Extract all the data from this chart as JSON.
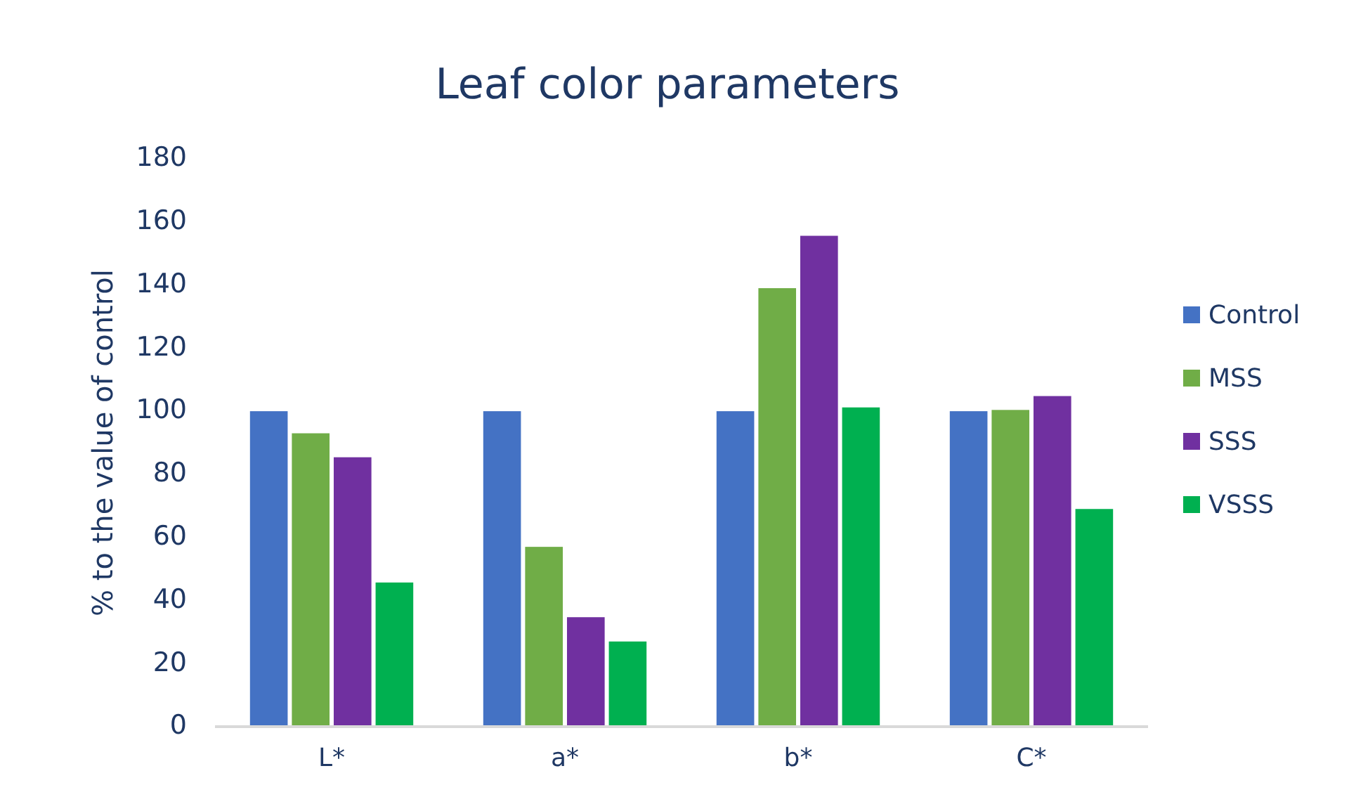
{
  "chart_data": {
    "type": "bar",
    "title": "Leaf color parameters",
    "ylabel": "% to the value of control",
    "categories": [
      "L*",
      "a*",
      "b*",
      "C*"
    ],
    "series": [
      {
        "name": "Control",
        "color": "#4472c4",
        "values": [
          100,
          100,
          100,
          100
        ]
      },
      {
        "name": "MSS",
        "color": "#70ad47",
        "values": [
          93,
          57,
          139,
          100.4
        ]
      },
      {
        "name": "SSS",
        "color": "#7030a0",
        "values": [
          85.4,
          34.7,
          155.6,
          104.8
        ]
      },
      {
        "name": "VSSS",
        "color": "#00b050",
        "values": [
          45.7,
          27,
          101.2,
          69
        ]
      }
    ],
    "ylim": [
      0,
      180
    ],
    "yticks": [
      0,
      20,
      40,
      60,
      80,
      100,
      120,
      140,
      160,
      180
    ],
    "grid": false,
    "legend": "right"
  }
}
